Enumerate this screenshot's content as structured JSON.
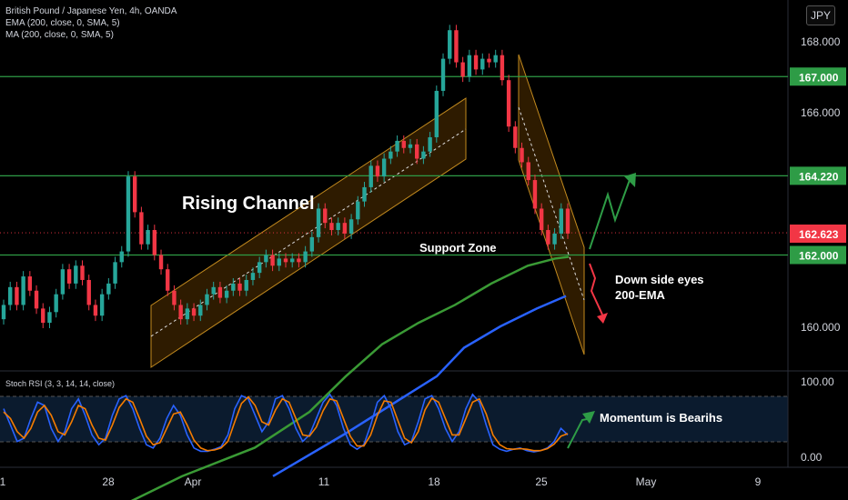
{
  "legend": {
    "symbol": "British Pound / Japanese Yen, 4h, OANDA",
    "ema": "EMA (200, close, 0, SMA, 5)",
    "ma": "MA (200, close, 0, SMA, 5)"
  },
  "currency_button": "JPY",
  "rsi_label": "Stoch RSI (3, 3, 14, 14, close)",
  "chart_data": {
    "type": "candlestick",
    "price_axis": {
      "range": [
        159.0,
        169.0
      ],
      "ticks": [
        "168.000",
        "166.000",
        "160.000"
      ]
    },
    "time_axis": {
      "ticks": [
        "1",
        "28",
        "Apr",
        "11",
        "18",
        "25",
        "May",
        "9"
      ]
    },
    "levels": [
      {
        "label": "167.000",
        "price": 167.0,
        "color": "#2e9c46"
      },
      {
        "label": "164.220",
        "price": 164.22,
        "color": "#2e9c46"
      },
      {
        "label": "162.000",
        "price": 162.0,
        "color": "#2e9c46"
      }
    ],
    "current_price": {
      "label": "162.623",
      "price": 162.623,
      "color": "#f23645"
    },
    "annotations": {
      "rising_channel": "Rising Channel",
      "support_zone": "Support Zone",
      "downside_line1": "Down side eyes",
      "downside_line2": "200-EMA",
      "momentum": "Momentum is Bearihs"
    },
    "ema_series": [
      [
        120,
        154.8
      ],
      [
        200,
        155.8
      ],
      [
        280,
        156.6
      ],
      [
        340,
        157.6
      ],
      [
        380,
        158.6
      ],
      [
        420,
        159.5
      ],
      [
        460,
        160.1
      ],
      [
        500,
        160.6
      ],
      [
        540,
        161.2
      ],
      [
        580,
        161.7
      ],
      [
        610,
        161.9
      ],
      [
        625,
        161.95
      ]
    ],
    "ma_series": [
      [
        300,
        155.8
      ],
      [
        380,
        157.0
      ],
      [
        430,
        157.8
      ],
      [
        480,
        158.6
      ],
      [
        510,
        159.4
      ],
      [
        550,
        160.0
      ],
      [
        590,
        160.5
      ],
      [
        622,
        160.85
      ]
    ],
    "candles": [
      [
        160.2,
        160.6
      ],
      [
        160.6,
        161.1
      ],
      [
        161.1,
        160.6
      ],
      [
        160.6,
        161.4
      ],
      [
        161.4,
        161.0
      ],
      [
        161.0,
        160.5
      ],
      [
        160.5,
        160.1
      ],
      [
        160.1,
        160.4
      ],
      [
        160.4,
        160.9
      ],
      [
        160.9,
        161.6
      ],
      [
        161.6,
        161.2
      ],
      [
        161.2,
        161.7
      ],
      [
        161.7,
        161.3
      ],
      [
        161.3,
        160.6
      ],
      [
        160.6,
        160.3
      ],
      [
        160.3,
        160.9
      ],
      [
        160.9,
        161.2
      ],
      [
        161.2,
        161.8
      ],
      [
        161.8,
        162.1
      ],
      [
        162.1,
        164.2
      ],
      [
        164.2,
        163.2
      ],
      [
        163.2,
        162.3
      ],
      [
        162.3,
        162.7
      ],
      [
        162.7,
        162.0
      ],
      [
        162.0,
        161.6
      ],
      [
        161.6,
        161.0
      ],
      [
        161.0,
        160.6
      ],
      [
        160.6,
        160.2
      ],
      [
        160.2,
        160.5
      ],
      [
        160.5,
        160.3
      ],
      [
        160.3,
        160.6
      ],
      [
        160.6,
        160.9
      ],
      [
        160.9,
        161.1
      ],
      [
        161.1,
        160.8
      ],
      [
        160.8,
        161.0
      ],
      [
        161.0,
        161.2
      ],
      [
        161.2,
        161.0
      ],
      [
        161.0,
        161.3
      ],
      [
        161.3,
        161.5
      ],
      [
        161.5,
        161.8
      ],
      [
        161.8,
        162.0
      ],
      [
        162.0,
        161.7
      ],
      [
        161.7,
        161.9
      ],
      [
        161.9,
        161.8
      ],
      [
        161.8,
        161.9
      ],
      [
        161.9,
        161.8
      ],
      [
        161.8,
        162.1
      ],
      [
        162.1,
        162.5
      ],
      [
        162.5,
        163.3
      ],
      [
        163.3,
        162.9
      ],
      [
        162.9,
        162.7
      ],
      [
        162.7,
        162.9
      ],
      [
        162.9,
        162.6
      ],
      [
        162.6,
        163.0
      ],
      [
        163.0,
        163.5
      ],
      [
        163.5,
        163.9
      ],
      [
        163.9,
        164.5
      ],
      [
        164.5,
        164.2
      ],
      [
        164.2,
        164.7
      ],
      [
        164.7,
        164.9
      ],
      [
        164.9,
        165.2
      ],
      [
        165.2,
        165.0
      ],
      [
        165.0,
        165.1
      ],
      [
        165.1,
        164.7
      ],
      [
        164.7,
        164.9
      ],
      [
        164.9,
        165.3
      ],
      [
        165.3,
        166.6
      ],
      [
        166.6,
        167.5
      ],
      [
        167.5,
        168.3
      ],
      [
        168.3,
        167.4
      ],
      [
        167.4,
        167.0
      ],
      [
        167.0,
        167.6
      ],
      [
        167.6,
        167.2
      ],
      [
        167.2,
        167.5
      ],
      [
        167.5,
        167.4
      ],
      [
        167.4,
        167.6
      ],
      [
        167.6,
        166.9
      ],
      [
        166.9,
        165.6
      ],
      [
        165.6,
        165.0
      ],
      [
        165.0,
        164.6
      ],
      [
        164.6,
        164.1
      ],
      [
        164.1,
        163.3
      ],
      [
        163.3,
        162.7
      ],
      [
        162.7,
        162.3
      ],
      [
        162.3,
        162.6
      ],
      [
        162.6,
        163.3
      ],
      [
        163.3,
        162.6
      ]
    ],
    "stoch_rsi": {
      "range": [
        0,
        100
      ],
      "ticks": [
        "100.00",
        "0.00"
      ],
      "k": [
        70,
        45,
        20,
        25,
        55,
        80,
        75,
        40,
        20,
        35,
        70,
        85,
        60,
        30,
        15,
        25,
        60,
        85,
        90,
        70,
        40,
        15,
        10,
        25,
        55,
        75,
        60,
        30,
        10,
        5,
        5,
        8,
        12,
        30,
        70,
        90,
        85,
        60,
        35,
        50,
        85,
        90,
        70,
        40,
        20,
        30,
        55,
        80,
        92,
        75,
        40,
        15,
        8,
        15,
        45,
        80,
        90,
        70,
        35,
        15,
        20,
        50,
        85,
        90,
        70,
        40,
        20,
        35,
        70,
        92,
        80,
        45,
        15,
        8,
        5,
        8,
        10,
        6,
        4,
        6,
        10,
        20,
        40,
        30
      ],
      "d": [
        65,
        55,
        35,
        25,
        40,
        65,
        75,
        60,
        35,
        30,
        50,
        75,
        70,
        45,
        25,
        22,
        45,
        72,
        85,
        80,
        55,
        28,
        15,
        18,
        40,
        62,
        65,
        45,
        22,
        10,
        6,
        7,
        10,
        20,
        50,
        78,
        88,
        75,
        50,
        45,
        68,
        85,
        80,
        55,
        30,
        28,
        42,
        67,
        85,
        82,
        55,
        28,
        13,
        13,
        30,
        60,
        82,
        80,
        52,
        25,
        18,
        35,
        68,
        86,
        80,
        55,
        30,
        30,
        55,
        80,
        85,
        62,
        30,
        15,
        9,
        8,
        9,
        8,
        6,
        6,
        9,
        16,
        28,
        32
      ],
      "momentum_arrow": "up"
    }
  },
  "colors": {
    "up": "#26a69a",
    "down": "#f23645",
    "level": "#2e9c46",
    "ema": "#3a9a35",
    "ma": "#2962ff",
    "channel_fill": "rgba(255,152,0,0.18)",
    "channel_border": "#c28a1e",
    "rsi_k": "#2962ff",
    "rsi_d": "#f57c00",
    "rsi_band": "#0b1b2e"
  }
}
